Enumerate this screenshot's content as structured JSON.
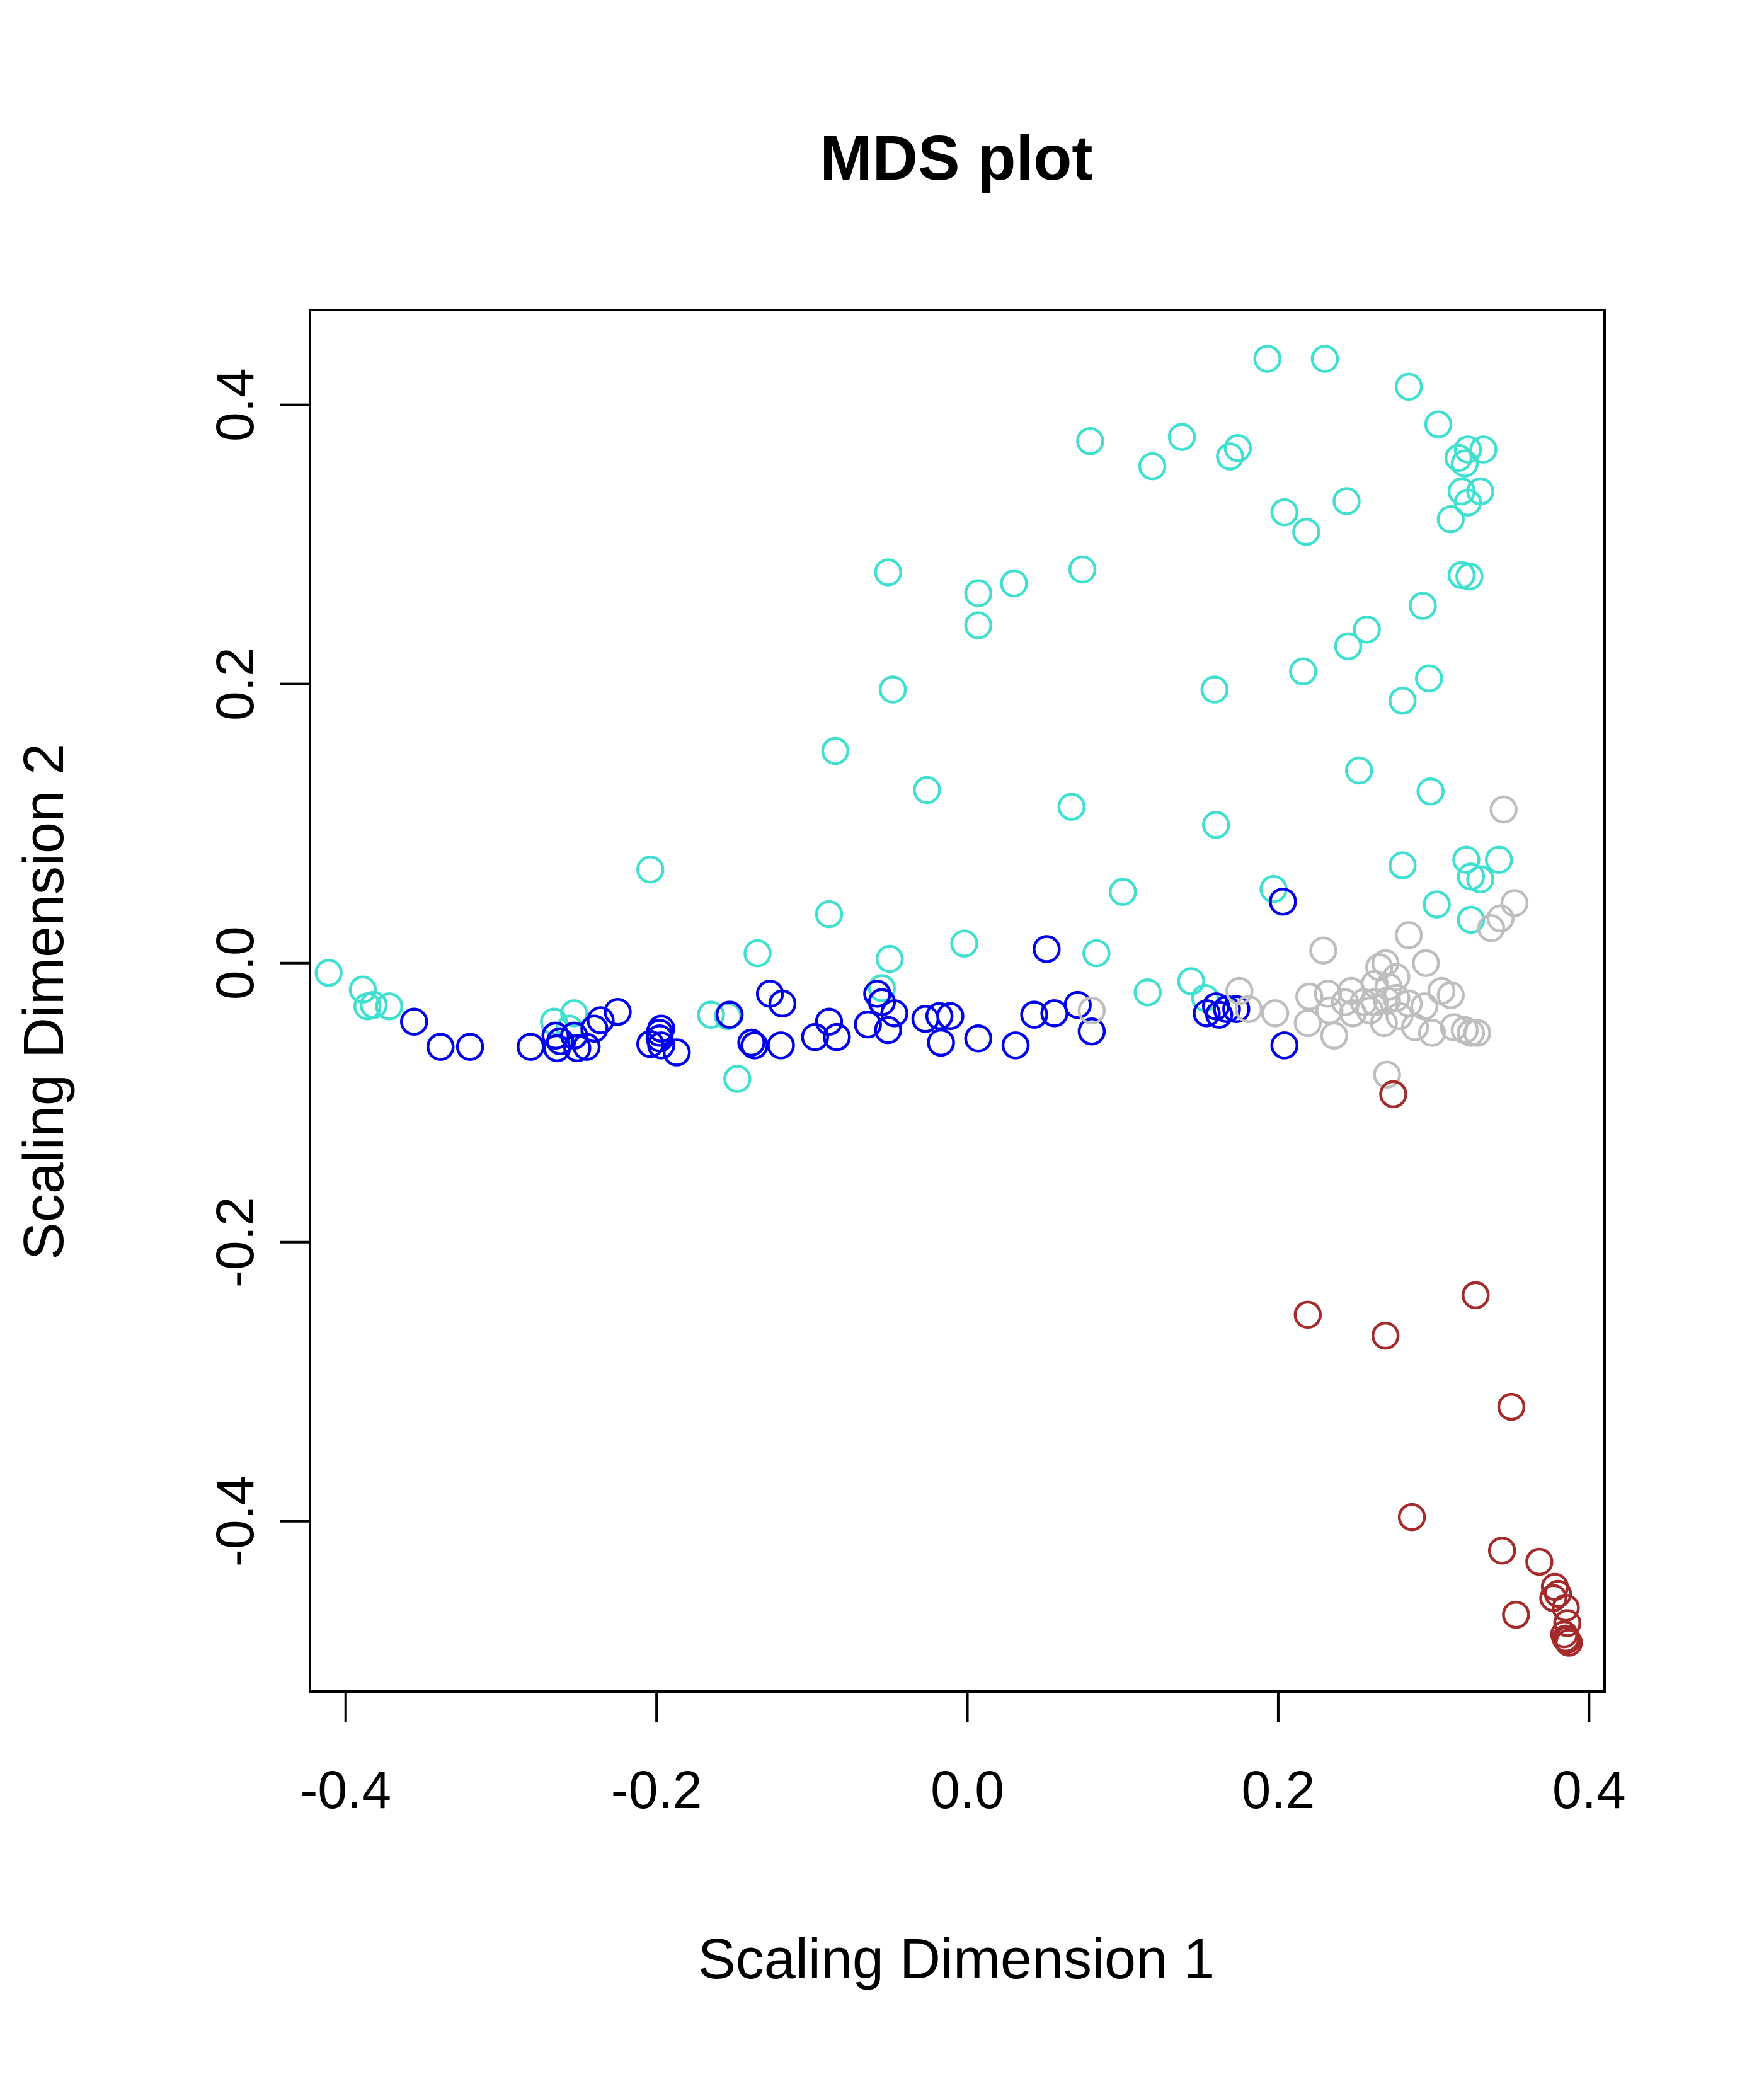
{
  "chart_data": {
    "type": "scatter",
    "title": "MDS plot",
    "xlabel": "Scaling Dimension 1",
    "ylabel": "Scaling Dimension 2",
    "xlim": [
      -0.423,
      0.41
    ],
    "ylim": [
      -0.522,
      0.468
    ],
    "xticks": [
      -0.4,
      -0.2,
      0.0,
      0.2,
      0.4
    ],
    "yticks": [
      -0.4,
      -0.2,
      0.0,
      0.2,
      0.4
    ],
    "xtick_labels": [
      "-0.4",
      "-0.2",
      "0.0",
      "0.2",
      "0.4"
    ],
    "ytick_labels": [
      "-0.4",
      "-0.2",
      "0.0",
      "0.2",
      "0.4"
    ],
    "grid": false,
    "marker": "open-circle",
    "series": [
      {
        "color": "#40E0D0",
        "points": [
          [
            0.193,
            0.433
          ],
          [
            0.23,
            0.433
          ],
          [
            0.284,
            0.413
          ],
          [
            0.138,
            0.377
          ],
          [
            0.079,
            0.374
          ],
          [
            0.174,
            0.369
          ],
          [
            0.169,
            0.363
          ],
          [
            0.119,
            0.356
          ],
          [
            0.303,
            0.386
          ],
          [
            0.322,
            0.368
          ],
          [
            0.332,
            0.368
          ],
          [
            0.316,
            0.362
          ],
          [
            0.32,
            0.358
          ],
          [
            0.318,
            0.338
          ],
          [
            0.33,
            0.338
          ],
          [
            0.322,
            0.33
          ],
          [
            0.311,
            0.318
          ],
          [
            0.204,
            0.323
          ],
          [
            0.244,
            0.331
          ],
          [
            0.218,
            0.309
          ],
          [
            -0.051,
            0.28
          ],
          [
            0.074,
            0.282
          ],
          [
            0.03,
            0.272
          ],
          [
            0.007,
            0.265
          ],
          [
            0.007,
            0.242
          ],
          [
            0.318,
            0.278
          ],
          [
            0.323,
            0.277
          ],
          [
            0.293,
            0.256
          ],
          [
            0.257,
            0.239
          ],
          [
            0.245,
            0.227
          ],
          [
            0.216,
            0.209
          ],
          [
            0.297,
            0.204
          ],
          [
            0.28,
            0.188
          ],
          [
            0.159,
            0.196
          ],
          [
            -0.048,
            0.196
          ],
          [
            -0.085,
            0.152
          ],
          [
            -0.026,
            0.124
          ],
          [
            0.252,
            0.138
          ],
          [
            0.298,
            0.123
          ],
          [
            0.067,
            0.112
          ],
          [
            0.16,
            0.099
          ],
          [
            0.321,
            0.074
          ],
          [
            0.342,
            0.074
          ],
          [
            0.324,
            0.062
          ],
          [
            0.33,
            0.06
          ],
          [
            0.28,
            0.07
          ],
          [
            -0.204,
            0.067
          ],
          [
            0.1,
            0.051
          ],
          [
            0.197,
            0.053
          ],
          [
            0.302,
            0.042
          ],
          [
            0.324,
            0.031
          ],
          [
            -0.089,
            0.035
          ],
          [
            -0.135,
            0.007
          ],
          [
            -0.05,
            0.003
          ],
          [
            -0.002,
            0.014
          ],
          [
            0.083,
            0.007
          ],
          [
            -0.411,
            -0.007
          ],
          [
            -0.389,
            -0.019
          ],
          [
            -0.386,
            -0.031
          ],
          [
            -0.382,
            -0.03
          ],
          [
            -0.372,
            -0.031
          ],
          [
            -0.055,
            -0.018
          ],
          [
            0.116,
            -0.021
          ],
          [
            0.144,
            -0.013
          ],
          [
            0.153,
            -0.025
          ],
          [
            -0.165,
            -0.037
          ],
          [
            -0.154,
            -0.038
          ],
          [
            -0.253,
            -0.036
          ],
          [
            -0.266,
            -0.042
          ],
          [
            -0.256,
            -0.047
          ],
          [
            -0.148,
            -0.083
          ]
        ]
      },
      {
        "color": "#0000EE",
        "points": [
          [
            0.203,
            0.044
          ],
          [
            0.051,
            0.01
          ],
          [
            -0.058,
            -0.022
          ],
          [
            -0.055,
            -0.028
          ],
          [
            -0.127,
            -0.022
          ],
          [
            -0.119,
            -0.029
          ],
          [
            -0.225,
            -0.035
          ],
          [
            -0.236,
            -0.041
          ],
          [
            -0.356,
            -0.042
          ],
          [
            -0.339,
            -0.06
          ],
          [
            -0.32,
            -0.06
          ],
          [
            -0.281,
            -0.06
          ],
          [
            -0.265,
            -0.052
          ],
          [
            -0.262,
            -0.056
          ],
          [
            -0.264,
            -0.061
          ],
          [
            -0.253,
            -0.052
          ],
          [
            -0.251,
            -0.061
          ],
          [
            -0.245,
            -0.06
          ],
          [
            -0.24,
            -0.047
          ],
          [
            -0.204,
            -0.058
          ],
          [
            -0.198,
            -0.05
          ],
          [
            -0.197,
            -0.047
          ],
          [
            -0.198,
            -0.054
          ],
          [
            -0.197,
            -0.059
          ],
          [
            -0.187,
            -0.064
          ],
          [
            -0.153,
            -0.037
          ],
          [
            -0.139,
            -0.057
          ],
          [
            -0.137,
            -0.059
          ],
          [
            -0.12,
            -0.059
          ],
          [
            -0.098,
            -0.053
          ],
          [
            -0.089,
            -0.042
          ],
          [
            -0.084,
            -0.053
          ],
          [
            -0.064,
            -0.044
          ],
          [
            -0.047,
            -0.036
          ],
          [
            -0.051,
            -0.048
          ],
          [
            -0.027,
            -0.04
          ],
          [
            -0.018,
            -0.038
          ],
          [
            -0.011,
            -0.038
          ],
          [
            -0.017,
            -0.057
          ],
          [
            0.007,
            -0.054
          ],
          [
            0.031,
            -0.059
          ],
          [
            0.043,
            -0.037
          ],
          [
            0.056,
            -0.036
          ],
          [
            0.071,
            -0.03
          ],
          [
            0.08,
            -0.049
          ],
          [
            0.154,
            -0.036
          ],
          [
            0.162,
            -0.037
          ],
          [
            0.167,
            -0.033
          ],
          [
            0.173,
            -0.033
          ],
          [
            0.16,
            -0.031
          ],
          [
            0.204,
            -0.059
          ]
        ]
      },
      {
        "color": "#BEBEBE",
        "points": [
          [
            0.345,
            0.11
          ],
          [
            0.352,
            0.043
          ],
          [
            0.343,
            0.032
          ],
          [
            0.337,
            0.025
          ],
          [
            0.229,
            0.009
          ],
          [
            0.269,
            0.0
          ],
          [
            0.295,
            0.0
          ],
          [
            0.284,
            0.02
          ],
          [
            0.265,
            -0.003
          ],
          [
            0.276,
            -0.01
          ],
          [
            0.271,
            -0.017
          ],
          [
            0.262,
            -0.015
          ],
          [
            0.247,
            -0.02
          ],
          [
            0.232,
            -0.022
          ],
          [
            0.22,
            -0.024
          ],
          [
            0.243,
            -0.028
          ],
          [
            0.255,
            -0.028
          ],
          [
            0.262,
            -0.028
          ],
          [
            0.27,
            -0.027
          ],
          [
            0.276,
            -0.025
          ],
          [
            0.284,
            -0.029
          ],
          [
            0.294,
            -0.031
          ],
          [
            0.305,
            -0.02
          ],
          [
            0.311,
            -0.023
          ],
          [
            0.259,
            -0.034
          ],
          [
            0.248,
            -0.036
          ],
          [
            0.233,
            -0.034
          ],
          [
            0.219,
            -0.043
          ],
          [
            0.236,
            -0.052
          ],
          [
            0.268,
            -0.043
          ],
          [
            0.278,
            -0.038
          ],
          [
            0.288,
            -0.046
          ],
          [
            0.299,
            -0.05
          ],
          [
            0.313,
            -0.046
          ],
          [
            0.32,
            -0.048
          ],
          [
            0.328,
            -0.05
          ],
          [
            0.324,
            -0.05
          ],
          [
            0.27,
            -0.08
          ],
          [
            0.175,
            -0.02
          ],
          [
            0.181,
            -0.033
          ],
          [
            0.198,
            -0.036
          ],
          [
            0.08,
            -0.034
          ]
        ]
      },
      {
        "color": "#A52A2A",
        "points": [
          [
            0.274,
            -0.094
          ],
          [
            0.219,
            -0.252
          ],
          [
            0.269,
            -0.267
          ],
          [
            0.327,
            -0.238
          ],
          [
            0.35,
            -0.318
          ],
          [
            0.286,
            -0.397
          ],
          [
            0.344,
            -0.421
          ],
          [
            0.368,
            -0.429
          ],
          [
            0.378,
            -0.447
          ],
          [
            0.38,
            -0.452
          ],
          [
            0.377,
            -0.455
          ],
          [
            0.385,
            -0.462
          ],
          [
            0.386,
            -0.473
          ],
          [
            0.353,
            -0.467
          ],
          [
            0.384,
            -0.481
          ],
          [
            0.385,
            -0.484
          ],
          [
            0.387,
            -0.487
          ],
          [
            0.386,
            -0.485
          ]
        ]
      }
    ]
  }
}
